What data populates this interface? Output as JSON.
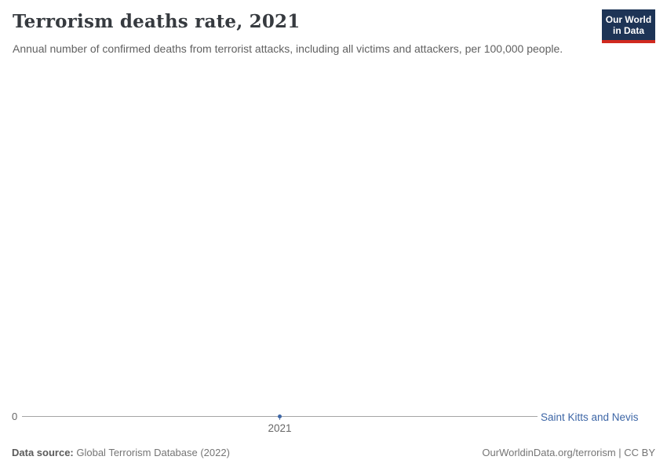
{
  "header": {
    "title": "Terrorism deaths rate, 2021",
    "subtitle": "Annual number of confirmed deaths from terrorist attacks, including all victims and attackers, per 100,000 people.",
    "logo": {
      "line1": "Our World",
      "line2": "in Data"
    }
  },
  "chart_data": {
    "type": "line",
    "title": "Terrorism deaths rate, 2021",
    "x": [
      2021
    ],
    "categories": [
      "2021"
    ],
    "series": [
      {
        "name": "Saint Kitts and Nevis",
        "values": [
          0
        ]
      }
    ],
    "xlabel": "",
    "ylabel": "",
    "ylim": [
      0,
      0
    ],
    "y_tick_labels": [
      "0"
    ],
    "x_tick_labels": [
      "2021"
    ],
    "grid": false,
    "legend_position": "right-of-line-end",
    "marker": "dot"
  },
  "axis": {
    "y_zero_label": "0",
    "x_tick_label": "2021",
    "entity_label": "Saint Kitts and Nevis"
  },
  "footer": {
    "datasource_label": "Data source:",
    "datasource_value": " Global Terrorism Database (2022)",
    "credit": "OurWorldinData.org/terrorism | CC BY"
  },
  "colors": {
    "series_blue": "#3d66a6",
    "axis_gray": "#a5a5a5",
    "title_color": "#363a3f",
    "subtitle_gray": "#616161",
    "footer_gray": "#757575",
    "logo_navy": "#1d3456",
    "logo_red": "#d0291f"
  }
}
